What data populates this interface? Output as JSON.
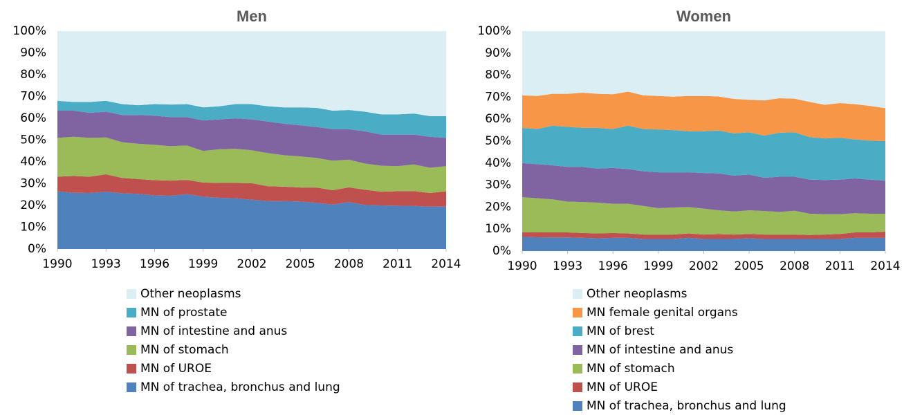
{
  "chart_data": [
    {
      "type": "stacked_area",
      "title": "Men",
      "x": [
        1990,
        1991,
        1992,
        1993,
        1994,
        1995,
        1996,
        1997,
        1998,
        1999,
        2000,
        2001,
        2002,
        2003,
        2004,
        2005,
        2006,
        2007,
        2008,
        2009,
        2010,
        2011,
        2012,
        2013,
        2014
      ],
      "xlim": [
        1990,
        2014
      ],
      "xticks": [
        1990,
        1993,
        1996,
        1999,
        2002,
        2005,
        2008,
        2011,
        2014
      ],
      "ylim": [
        0,
        100
      ],
      "yticks": [
        {
          "value": 0,
          "label": "0%"
        },
        {
          "value": 10,
          "label": "10%"
        },
        {
          "value": 20,
          "label": "20%"
        },
        {
          "value": 30,
          "label": "30%"
        },
        {
          "value": 40,
          "label": "40%"
        },
        {
          "value": 50,
          "label": "50%"
        },
        {
          "value": 60,
          "label": "60%"
        },
        {
          "value": 70,
          "label": "70%"
        },
        {
          "value": 80,
          "label": "80%"
        },
        {
          "value": 90,
          "label": "90%"
        },
        {
          "value": 100,
          "label": "100%"
        }
      ],
      "series": [
        {
          "name": "MN of trachea, bronchus and lung",
          "color": "#4f81bd",
          "values": [
            26.5,
            25.8,
            25.7,
            26.3,
            25.6,
            25.3,
            24.6,
            24.4,
            25.2,
            24.0,
            23.5,
            23.3,
            22.6,
            22.0,
            22.0,
            21.8,
            21.2,
            20.4,
            21.5,
            20.2,
            20.0,
            19.9,
            19.8,
            19.4,
            19.5
          ]
        },
        {
          "name": "MN of UROE",
          "color": "#c0504d",
          "values": [
            6.7,
            7.7,
            7.5,
            8.0,
            7.0,
            6.8,
            7.0,
            7.0,
            6.5,
            6.5,
            6.8,
            7.0,
            7.6,
            6.8,
            6.6,
            6.4,
            7.0,
            6.6,
            6.8,
            7.0,
            6.3,
            6.6,
            6.8,
            6.3,
            7.0
          ]
        },
        {
          "name": "MN of stomach",
          "color": "#9bbb59",
          "values": [
            17.8,
            18.0,
            17.8,
            16.9,
            16.4,
            16.2,
            16.2,
            15.8,
            15.8,
            14.5,
            15.5,
            15.7,
            15.1,
            15.2,
            14.4,
            14.3,
            13.6,
            13.5,
            12.7,
            12.0,
            11.9,
            11.5,
            12.2,
            11.6,
            11.5
          ]
        },
        {
          "name": "MN of intestine and anus",
          "color": "#8064a2",
          "values": [
            12.5,
            12.0,
            11.5,
            11.8,
            12.5,
            13.2,
            13.4,
            13.3,
            13.0,
            14.0,
            13.7,
            14.0,
            14.2,
            14.5,
            14.5,
            14.3,
            14.2,
            14.5,
            14.0,
            14.8,
            14.3,
            14.5,
            13.7,
            14.2,
            13.0
          ]
        },
        {
          "name": "MN of prostate",
          "color": "#4bacc6",
          "values": [
            4.5,
            4.0,
            5.0,
            5.0,
            5.0,
            4.5,
            5.3,
            5.8,
            6.0,
            6.0,
            6.0,
            6.5,
            7.0,
            7.0,
            7.5,
            8.2,
            8.8,
            8.5,
            8.8,
            9.0,
            9.3,
            9.3,
            9.7,
            9.5,
            10.0
          ]
        },
        {
          "name": "Other neoplasms",
          "color": "#dbeef4",
          "values": [
            32.0,
            32.5,
            32.5,
            32.0,
            33.5,
            34.0,
            33.5,
            33.7,
            33.5,
            35.0,
            34.5,
            33.5,
            33.5,
            34.5,
            35.0,
            35.0,
            35.2,
            36.5,
            36.2,
            37.0,
            38.2,
            38.2,
            37.8,
            39.0,
            39.0
          ]
        }
      ]
    },
    {
      "type": "stacked_area",
      "title": "Women",
      "x": [
        1990,
        1991,
        1992,
        1993,
        1994,
        1995,
        1996,
        1997,
        1998,
        1999,
        2000,
        2001,
        2002,
        2003,
        2004,
        2005,
        2006,
        2007,
        2008,
        2009,
        2010,
        2011,
        2012,
        2013,
        2014
      ],
      "xlim": [
        1990,
        2014
      ],
      "xticks": [
        1990,
        1993,
        1996,
        1999,
        2002,
        2005,
        2008,
        2011,
        2014
      ],
      "ylim": [
        0,
        100
      ],
      "yticks": [
        {
          "value": 0,
          "label": "0%"
        },
        {
          "value": 10,
          "label": "10%"
        },
        {
          "value": 20,
          "label": "20%"
        },
        {
          "value": 30,
          "label": "30%"
        },
        {
          "value": 40,
          "label": "40%"
        },
        {
          "value": 50,
          "label": "50%"
        },
        {
          "value": 60,
          "label": "60%"
        },
        {
          "value": 70,
          "label": "70%"
        },
        {
          "value": 80,
          "label": "80%"
        },
        {
          "value": 90,
          "label": "90%"
        },
        {
          "value": 100,
          "label": "100%"
        }
      ],
      "series": [
        {
          "name": "MN of trachea, bronchus and lung",
          "color": "#4f81bd",
          "values": [
            6.5,
            6.3,
            6.2,
            6.2,
            6.0,
            5.8,
            6.0,
            6.0,
            5.5,
            5.5,
            5.5,
            6.0,
            5.5,
            5.5,
            5.5,
            5.8,
            5.5,
            5.5,
            5.5,
            5.5,
            5.5,
            5.5,
            6.0,
            6.0,
            6.0
          ]
        },
        {
          "name": "MN of UROE",
          "color": "#c0504d",
          "values": [
            2.0,
            2.2,
            2.3,
            2.3,
            2.2,
            2.2,
            2.2,
            2.0,
            2.0,
            2.0,
            2.0,
            2.0,
            2.0,
            2.2,
            2.0,
            2.0,
            2.0,
            2.0,
            2.0,
            1.8,
            2.0,
            2.3,
            2.5,
            2.5,
            2.8
          ]
        },
        {
          "name": "MN of stomach",
          "color": "#9bbb59",
          "values": [
            16.0,
            15.5,
            15.0,
            14.0,
            14.1,
            14.0,
            13.3,
            13.5,
            13.0,
            12.0,
            12.3,
            12.0,
            11.8,
            10.8,
            10.5,
            10.7,
            10.7,
            10.3,
            10.8,
            9.7,
            9.3,
            9.0,
            8.7,
            8.5,
            8.2
          ]
        },
        {
          "name": "MN of intestine and anus",
          "color": "#8064a2",
          "values": [
            15.5,
            15.5,
            15.5,
            15.8,
            15.9,
            15.5,
            16.3,
            15.8,
            15.8,
            16.3,
            16.0,
            15.8,
            16.2,
            16.8,
            16.3,
            16.3,
            15.1,
            16.0,
            15.5,
            15.5,
            15.5,
            15.7,
            15.8,
            15.5,
            15.0
          ]
        },
        {
          "name": "MN of brest",
          "color": "#4bacc6",
          "values": [
            16.0,
            16.0,
            18.0,
            18.2,
            17.8,
            18.5,
            17.7,
            19.7,
            19.2,
            19.5,
            19.2,
            18.7,
            19.0,
            19.5,
            19.2,
            19.2,
            19.2,
            20.0,
            20.2,
            19.3,
            18.9,
            19.0,
            17.8,
            17.7,
            18.0
          ]
        },
        {
          "name": "MN female genital organs",
          "color": "#f79646",
          "values": [
            14.8,
            15.0,
            14.5,
            15.0,
            16.0,
            15.5,
            15.8,
            15.5,
            15.3,
            15.2,
            15.2,
            16.0,
            16.0,
            15.5,
            15.7,
            14.8,
            16.0,
            15.7,
            15.3,
            16.0,
            15.3,
            15.8,
            16.0,
            15.8,
            15.0
          ]
        },
        {
          "name": "Other neoplasms",
          "color": "#dbeef4",
          "values": [
            29.2,
            29.5,
            28.5,
            28.5,
            28.0,
            28.5,
            28.7,
            27.5,
            29.2,
            29.5,
            29.8,
            29.5,
            29.5,
            29.7,
            30.8,
            31.2,
            31.5,
            30.5,
            30.7,
            32.2,
            33.5,
            32.7,
            33.2,
            34.0,
            35.0
          ]
        }
      ]
    }
  ]
}
